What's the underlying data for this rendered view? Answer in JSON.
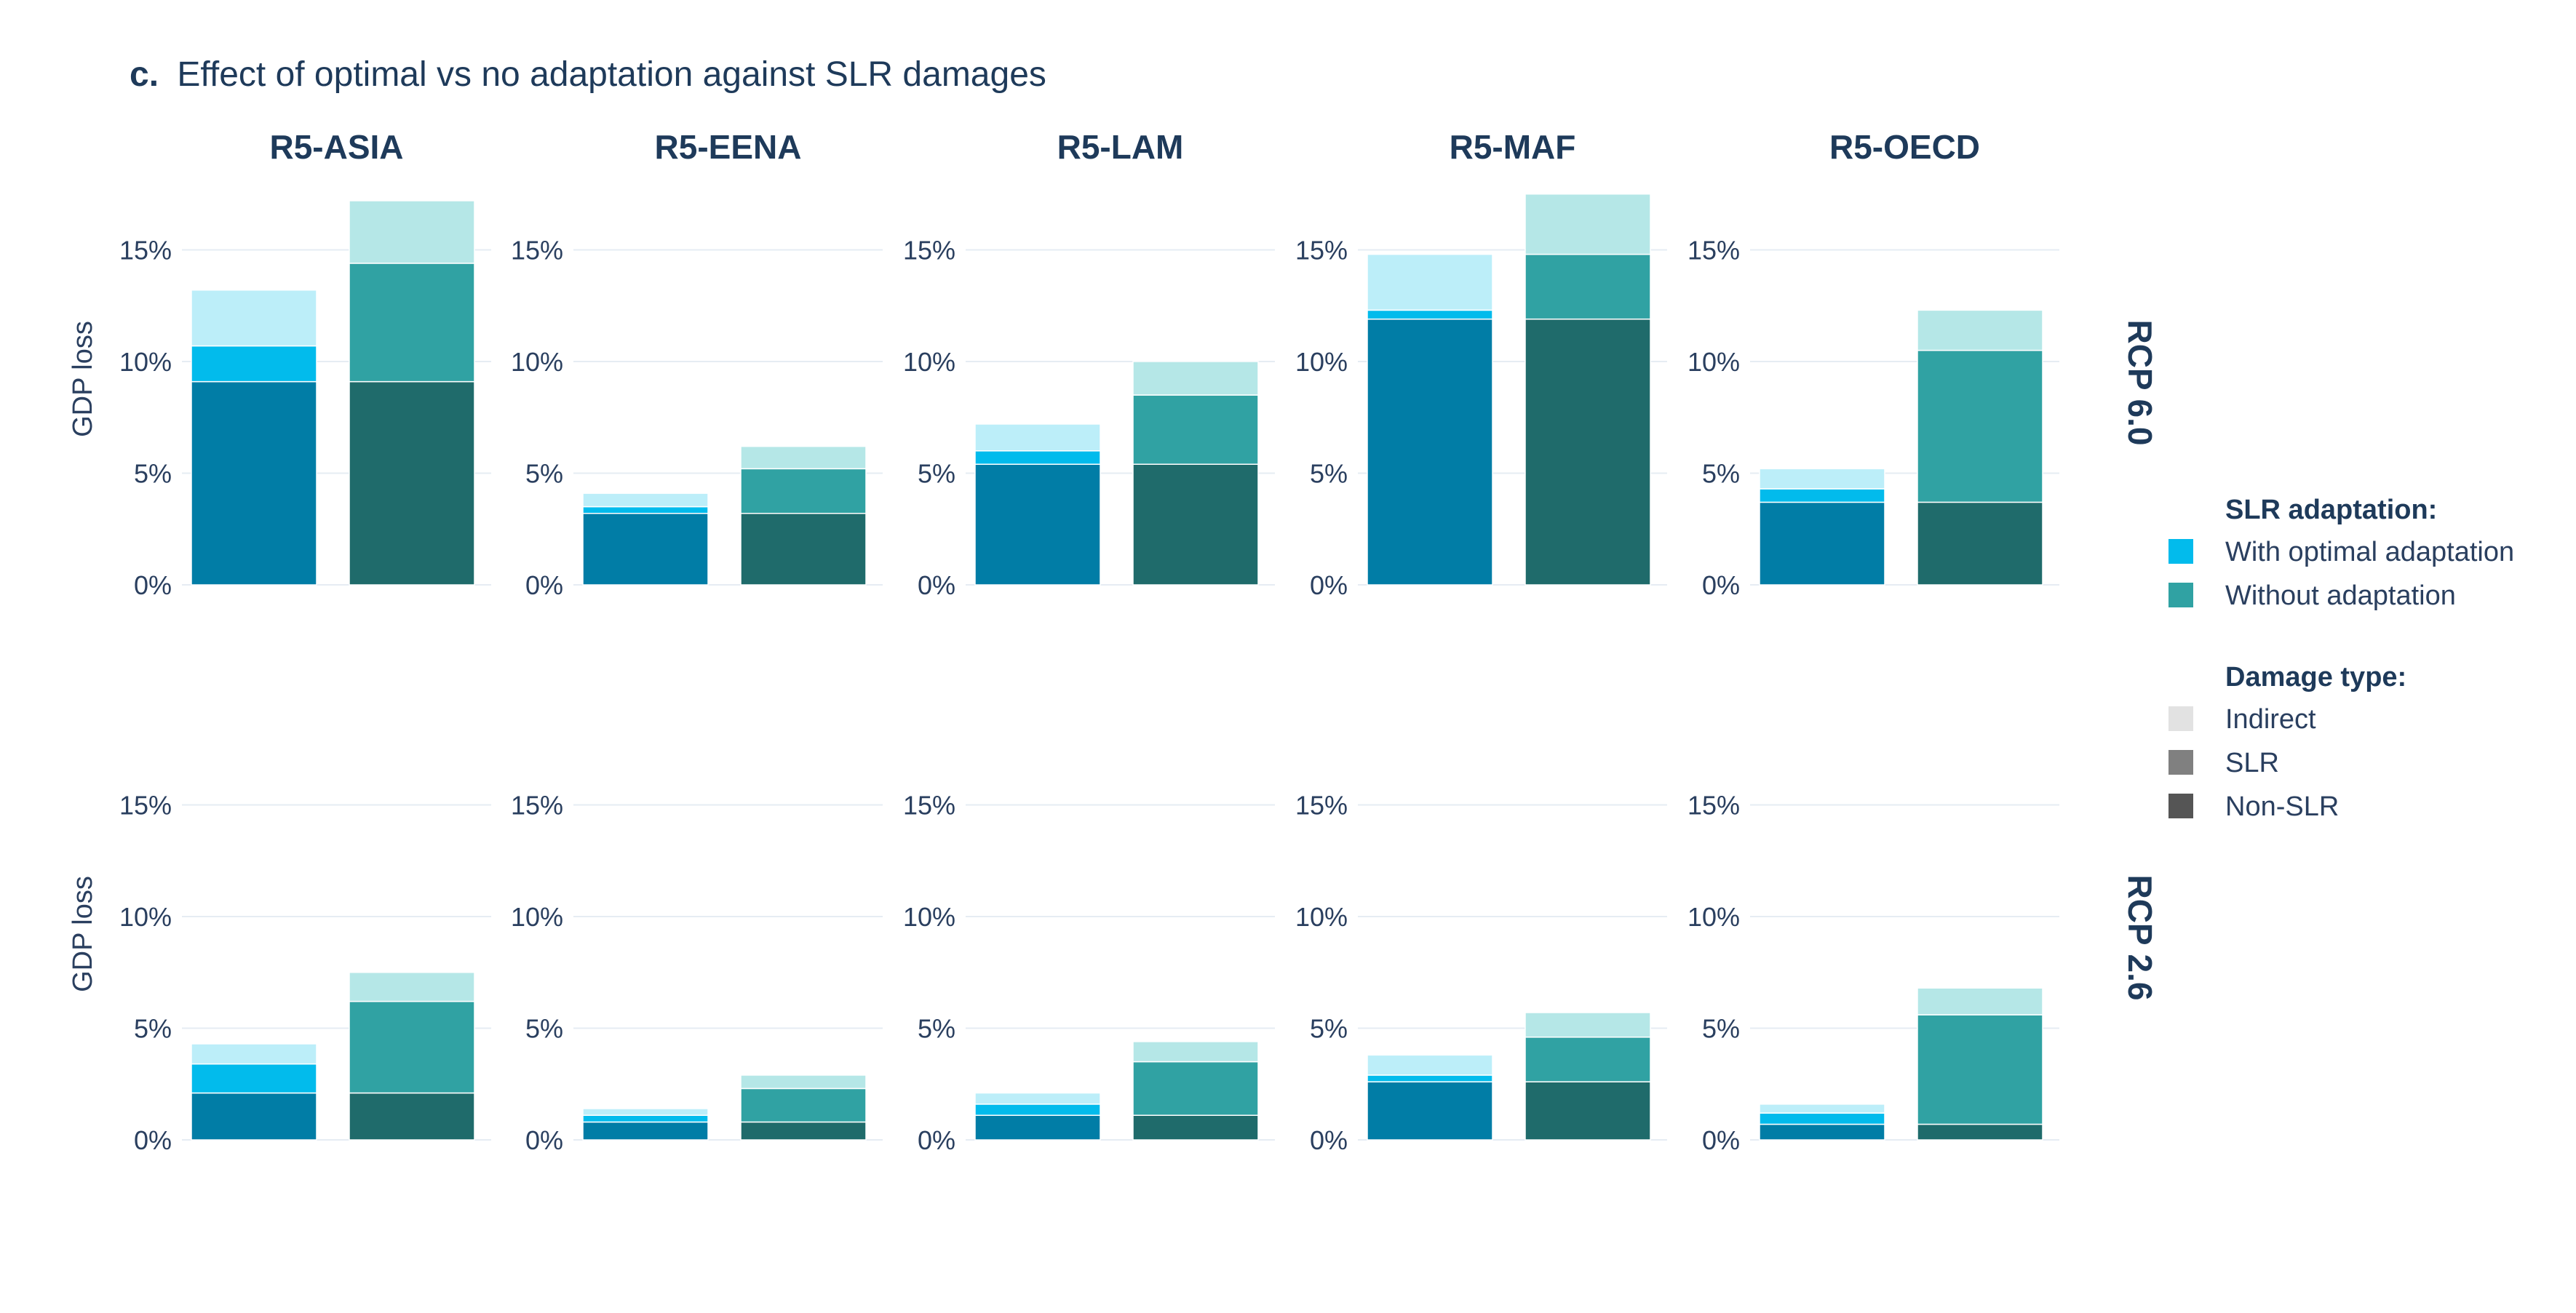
{
  "figure": {
    "title_prefix": "c.",
    "title": "Effect of optimal vs no adaptation against SLR damages"
  },
  "colors": {
    "with_nonslr": "#017DA6",
    "with_slr": "#02BBEC",
    "with_indirect": "#BCEEF9",
    "without_nonslr": "#1F6B6B",
    "without_slr": "#30A2A3",
    "without_indirect": "#B5E7E7",
    "legend_indirect": "#E2E2E2",
    "legend_slr": "#808080",
    "legend_nonslr": "#555555",
    "grid": "#E6ECF3",
    "text": "#2A3F5F",
    "title": "#1E3A5A"
  },
  "legend": {
    "adaptation_title": "SLR adaptation:",
    "adaptation_items": [
      {
        "label": "With optimal adaptation",
        "color": "#02BBEC"
      },
      {
        "label": "Without adaptation",
        "color": "#30A2A3"
      }
    ],
    "damage_title": "Damage type:",
    "damage_items": [
      {
        "label": "Indirect",
        "color": "#E2E2E2"
      },
      {
        "label": "SLR",
        "color": "#808080"
      },
      {
        "label": "Non-SLR",
        "color": "#555555"
      }
    ]
  },
  "chart_data": {
    "type": "bar",
    "stacked": true,
    "columns": [
      "R5-ASIA",
      "R5-EENA",
      "R5-LAM",
      "R5-MAF",
      "R5-OECD"
    ],
    "rows": [
      "RCP 6.0",
      "RCP 2.6"
    ],
    "ylabel": "GDP loss",
    "ylim": [
      0,
      17.5
    ],
    "yticks": [
      0,
      5,
      10,
      15
    ],
    "ytick_labels": [
      "0%",
      "5%",
      "10%",
      "15%"
    ],
    "grid": true,
    "legend_position": "right",
    "categories": [
      "With optimal adaptation",
      "Without adaptation"
    ],
    "stack_order": [
      "Non-SLR",
      "SLR",
      "Indirect"
    ],
    "panels": [
      {
        "row": "RCP 6.0",
        "region": "R5-ASIA",
        "with": {
          "nonslr": 9.1,
          "slr": 1.6,
          "indirect": 2.5
        },
        "without": {
          "nonslr": 9.1,
          "slr": 5.3,
          "indirect": 2.8
        }
      },
      {
        "row": "RCP 6.0",
        "region": "R5-EENA",
        "with": {
          "nonslr": 3.2,
          "slr": 0.3,
          "indirect": 0.6
        },
        "without": {
          "nonslr": 3.2,
          "slr": 2.0,
          "indirect": 1.0
        }
      },
      {
        "row": "RCP 6.0",
        "region": "R5-LAM",
        "with": {
          "nonslr": 5.4,
          "slr": 0.6,
          "indirect": 1.2
        },
        "without": {
          "nonslr": 5.4,
          "slr": 3.1,
          "indirect": 1.5
        }
      },
      {
        "row": "RCP 6.0",
        "region": "R5-MAF",
        "with": {
          "nonslr": 11.9,
          "slr": 0.4,
          "indirect": 2.5
        },
        "without": {
          "nonslr": 11.9,
          "slr": 2.9,
          "indirect": 2.7
        }
      },
      {
        "row": "RCP 6.0",
        "region": "R5-OECD",
        "with": {
          "nonslr": 3.7,
          "slr": 0.6,
          "indirect": 0.9
        },
        "without": {
          "nonslr": 3.7,
          "slr": 6.8,
          "indirect": 1.8
        }
      },
      {
        "row": "RCP 2.6",
        "region": "R5-ASIA",
        "with": {
          "nonslr": 2.1,
          "slr": 1.3,
          "indirect": 0.9
        },
        "without": {
          "nonslr": 2.1,
          "slr": 4.1,
          "indirect": 1.3
        }
      },
      {
        "row": "RCP 2.6",
        "region": "R5-EENA",
        "with": {
          "nonslr": 0.8,
          "slr": 0.3,
          "indirect": 0.3
        },
        "without": {
          "nonslr": 0.8,
          "slr": 1.5,
          "indirect": 0.6
        }
      },
      {
        "row": "RCP 2.6",
        "region": "R5-LAM",
        "with": {
          "nonslr": 1.1,
          "slr": 0.5,
          "indirect": 0.5
        },
        "without": {
          "nonslr": 1.1,
          "slr": 2.4,
          "indirect": 0.9
        }
      },
      {
        "row": "RCP 2.6",
        "region": "R5-MAF",
        "with": {
          "nonslr": 2.6,
          "slr": 0.3,
          "indirect": 0.9
        },
        "without": {
          "nonslr": 2.6,
          "slr": 2.0,
          "indirect": 1.1
        }
      },
      {
        "row": "RCP 2.6",
        "region": "R5-OECD",
        "with": {
          "nonslr": 0.7,
          "slr": 0.5,
          "indirect": 0.4
        },
        "without": {
          "nonslr": 0.7,
          "slr": 4.9,
          "indirect": 1.2
        }
      }
    ]
  }
}
